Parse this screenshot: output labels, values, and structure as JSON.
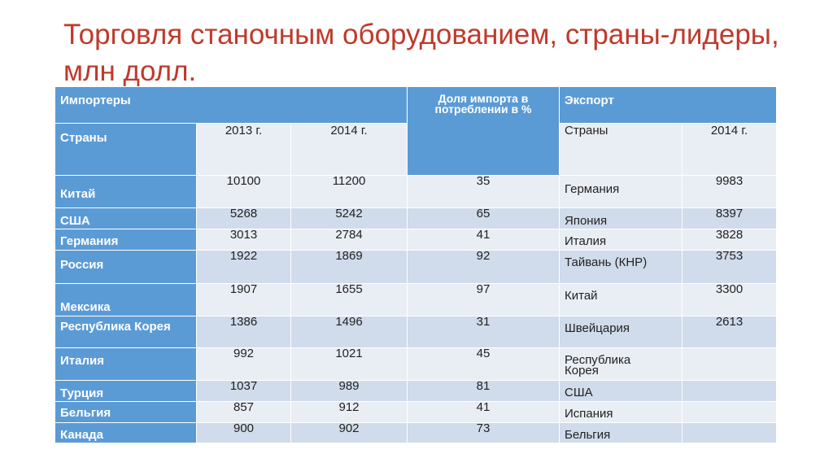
{
  "title": "Торговля станочным оборудованием, страны-лидеры, млн долл.",
  "headers": {
    "importers": "Импортеры",
    "share": "Доля импорта в потреблении в %",
    "export": "Экспорт",
    "countries": "Страны",
    "y2013": "2013 г.",
    "y2014": "2014 г.",
    "export_countries": "Страны",
    "export_y2014": "2014 г."
  },
  "rows": [
    {
      "importer": "Китай",
      "v2013": "10100",
      "v2014": "11200",
      "share": "35",
      "exporter": "Германия",
      "export": "9983"
    },
    {
      "importer": "США",
      "v2013": "5268",
      "v2014": "5242",
      "share": "65",
      "exporter": "Япония",
      "export": "8397"
    },
    {
      "importer": "Германия",
      "v2013": "3013",
      "v2014": "2784",
      "share": "41",
      "exporter": "Италия",
      "export": "3828"
    },
    {
      "importer": "Россия",
      "v2013": "1922",
      "v2014": "1869",
      "share": "92",
      "exporter": "Тайвань (КНР)",
      "export": "3753"
    },
    {
      "importer": "Мексика",
      "v2013": "1907",
      "v2014": "1655",
      "share": "97",
      "exporter": "Китай",
      "export": "3300"
    },
    {
      "importer": "Республика Корея",
      "v2013": "1386",
      "v2014": "1496",
      "share": "31",
      "exporter": "Швейцария",
      "export": "2613"
    },
    {
      "importer": "Италия",
      "v2013": "992",
      "v2014": "1021",
      "share": "45",
      "exporter": "Республика Корея",
      "export": ""
    },
    {
      "importer": "Турция",
      "v2013": "1037",
      "v2014": "989",
      "share": "81",
      "exporter": "США",
      "export": ""
    },
    {
      "importer": "Бельгия",
      "v2013": "857",
      "v2014": "912",
      "share": "41",
      "exporter": "Испания",
      "export": ""
    },
    {
      "importer": "Канада",
      "v2013": "900",
      "v2014": "902",
      "share": "73",
      "exporter": "Бельгия",
      "export": ""
    }
  ]
}
